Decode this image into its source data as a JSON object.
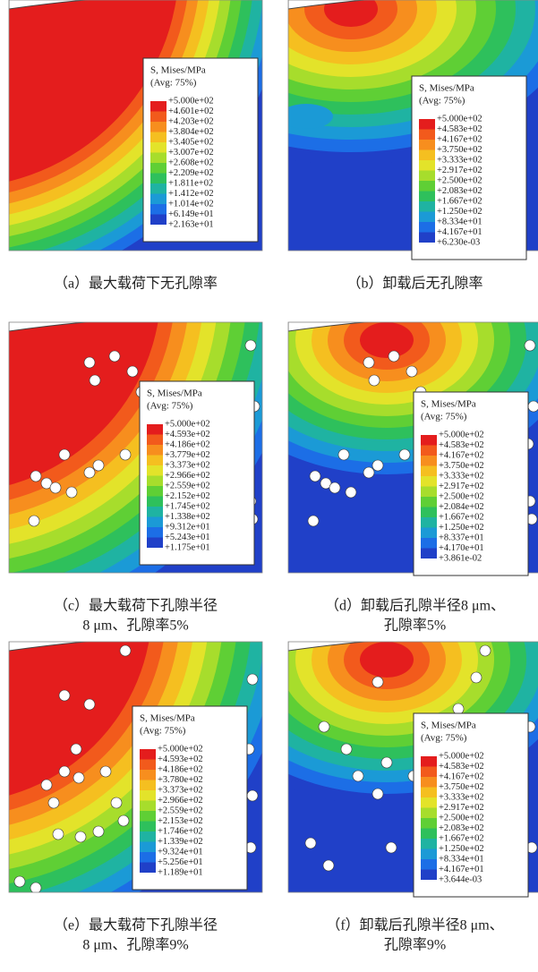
{
  "legend_colors": [
    "#e41d1d",
    "#f25a1c",
    "#f78e1e",
    "#f5bf20",
    "#e3e32a",
    "#a7dd2c",
    "#5fcf35",
    "#2ec05c",
    "#1fb3a2",
    "#1b9ad6",
    "#1c6ee6",
    "#2040c8"
  ],
  "panels": [
    {
      "legend_title": [
        "S, Mises/MPa",
        "(Avg: 75%)"
      ],
      "legend_labels": [
        "+5.000e+02",
        "+4.601e+02",
        "+4.203e+02",
        "+3.804e+02",
        "+3.405e+02",
        "+3.007e+02",
        "+2.608e+02",
        "+2.209e+02",
        "+1.811e+02",
        "+1.412e+02",
        "+1.014e+02",
        "+6.149e+01",
        "+2.163e+01"
      ],
      "caption": [
        "（a）最大载荷下无孔隙率"
      ]
    },
    {
      "legend_title": [
        "S, Mises/MPa",
        "(Avg: 75%)"
      ],
      "legend_labels": [
        "+5.000e+02",
        "+4.583e+02",
        "+4.167e+02",
        "+3.750e+02",
        "+3.333e+02",
        "+2.917e+02",
        "+2.500e+02",
        "+2.083e+02",
        "+1.667e+02",
        "+1.250e+02",
        "+8.334e+01",
        "+4.167e+01",
        "+6.230e-03"
      ],
      "caption": [
        "（b）卸载后无孔隙率"
      ]
    },
    {
      "legend_title": [
        "S, Mises/MPa",
        "(Avg: 75%)"
      ],
      "legend_labels": [
        "+5.000e+02",
        "+4.593e+02",
        "+4.186e+02",
        "+3.779e+02",
        "+3.373e+02",
        "+2.966e+02",
        "+2.559e+02",
        "+2.152e+02",
        "+1.745e+02",
        "+1.338e+02",
        "+9.312e+01",
        "+5.243e+01",
        "+1.175e+01"
      ],
      "caption": [
        "（c）最大载荷下孔隙半径",
        "8 μm、孔隙率5%"
      ]
    },
    {
      "legend_title": [
        "S, Mises/MPa",
        "(Avg: 75%)"
      ],
      "legend_labels": [
        "+5.000e+02",
        "+4.583e+02",
        "+4.167e+02",
        "+3.750e+02",
        "+3.333e+02",
        "+2.917e+02",
        "+2.500e+02",
        "+2.084e+02",
        "+1.667e+02",
        "+1.250e+02",
        "+8.337e+01",
        "+4.170e+01",
        "+3.861e-02"
      ],
      "caption": [
        "（d）卸载后孔隙半径8 μm、",
        "孔隙率5%"
      ]
    },
    {
      "legend_title": [
        "S, Mises/MPa",
        "(Avg: 75%)"
      ],
      "legend_labels": [
        "+5.000e+02",
        "+4.593e+02",
        "+4.186e+02",
        "+3.780e+02",
        "+3.373e+02",
        "+2.966e+02",
        "+2.559e+02",
        "+2.153e+02",
        "+1.746e+02",
        "+1.339e+02",
        "+9.324e+01",
        "+5.256e+01",
        "+1.189e+01"
      ],
      "caption": [
        "（e）最大载荷下孔隙半径",
        "8 μm、孔隙率9%"
      ]
    },
    {
      "legend_title": [
        "S, Mises/MPa",
        "(Avg: 75%)"
      ],
      "legend_labels": [
        "+5.000e+02",
        "+4.583e+02",
        "+4.167e+02",
        "+3.750e+02",
        "+3.333e+02",
        "+2.917e+02",
        "+2.500e+02",
        "+2.083e+02",
        "+1.667e+02",
        "+1.250e+02",
        "+8.334e+01",
        "+4.167e+01",
        "+3.644e-03"
      ],
      "caption": [
        "（f）卸载后孔隙半径8 μm、",
        "孔隙率9%"
      ]
    }
  ]
}
